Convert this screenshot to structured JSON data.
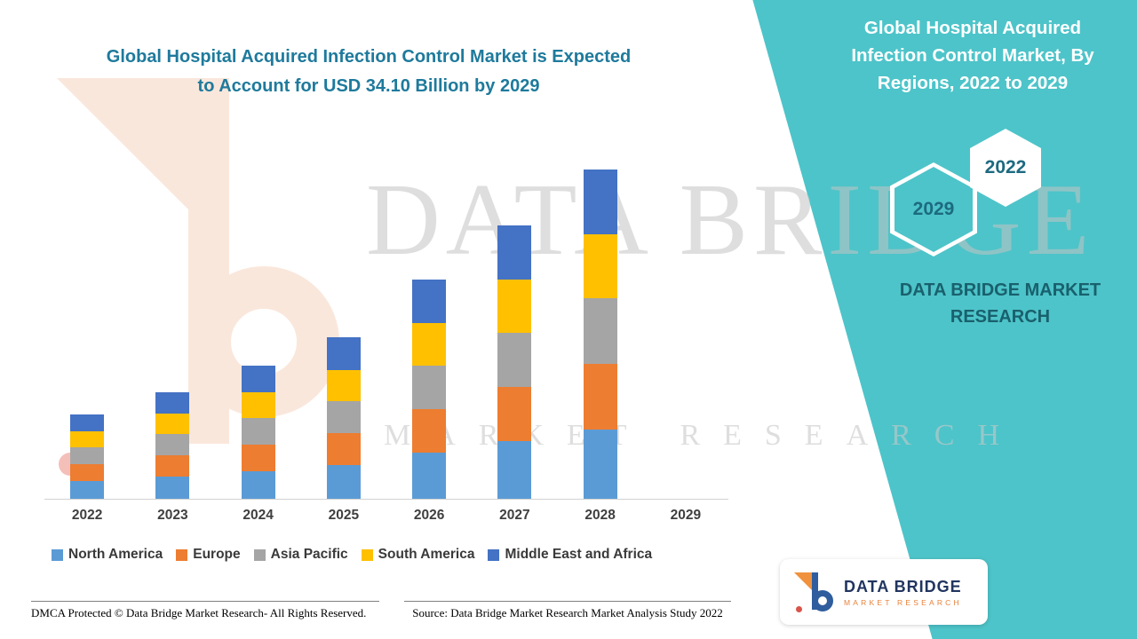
{
  "header": {
    "title_line1": "Global Hospital Acquired Infection Control Market is Expected",
    "title_line2": "to Account for USD 34.10 Billion by 2029",
    "title_color": "#1e7a9c"
  },
  "right_panel": {
    "title": "Global Hospital Acquired Infection Control Market, By Regions, 2022 to 2029",
    "hexagons": {
      "back": "2029",
      "front": "2022"
    },
    "brand_text": "DATA BRIDGE MARKET RESEARCH",
    "bg_color": "#4dc4c9",
    "brand_text_color": "#19606d",
    "hex_label_color": "#1d6a80"
  },
  "watermark": {
    "line1": "DATA BRIDGE",
    "line2": "MARKET RESEARCH"
  },
  "logo_card": {
    "name": "DATA BRIDGE",
    "subtitle": "MARKET RESEARCH"
  },
  "footer": {
    "left": "DMCA Protected © Data Bridge Market Research- All Rights Reserved.",
    "source": "Source: Data Bridge Market Research Market Analysis Study 2022"
  },
  "chart_data": {
    "type": "bar",
    "stacked": true,
    "title": "Global Hospital Acquired Infection Control Market, By Regions, 2022 to 2029",
    "unit": "USD Billion",
    "xlabel": "",
    "ylabel": "",
    "ylim": [
      0,
      33.5
    ],
    "grid": false,
    "legend_position": "bottom",
    "note": "Values estimated from bar heights; no bar is drawn for 2029 although the axis label is shown. Headline states market expected to reach USD 34.10 billion by 2029.",
    "categories": [
      "2022",
      "2023",
      "2024",
      "2025",
      "2026",
      "2027",
      "2028",
      "2029"
    ],
    "series": [
      {
        "key": "north_america",
        "name": "North America",
        "color": "#5B9BD5",
        "values": [
          1.7,
          2.1,
          2.6,
          3.2,
          4.3,
          5.4,
          6.5,
          null
        ]
      },
      {
        "key": "europe",
        "name": "Europe",
        "color": "#ED7D31",
        "values": [
          1.6,
          2.0,
          2.5,
          3.0,
          4.1,
          5.1,
          6.2,
          null
        ]
      },
      {
        "key": "asia_pacific",
        "name": "Asia Pacific",
        "color": "#A5A5A5",
        "values": [
          1.6,
          2.0,
          2.5,
          3.0,
          4.1,
          5.1,
          6.2,
          null
        ]
      },
      {
        "key": "south_america",
        "name": "South America",
        "color": "#FFC000",
        "values": [
          1.5,
          1.9,
          2.4,
          2.9,
          4.0,
          5.0,
          6.0,
          null
        ]
      },
      {
        "key": "middle_east_africa",
        "name": "Middle East and Africa",
        "color": "#4472C4",
        "values": [
          1.6,
          2.0,
          2.5,
          3.1,
          4.1,
          5.1,
          6.1,
          null
        ]
      }
    ],
    "totals": [
      8.0,
      10.0,
      12.5,
      15.2,
      20.6,
      25.7,
      31.0,
      null
    ]
  }
}
